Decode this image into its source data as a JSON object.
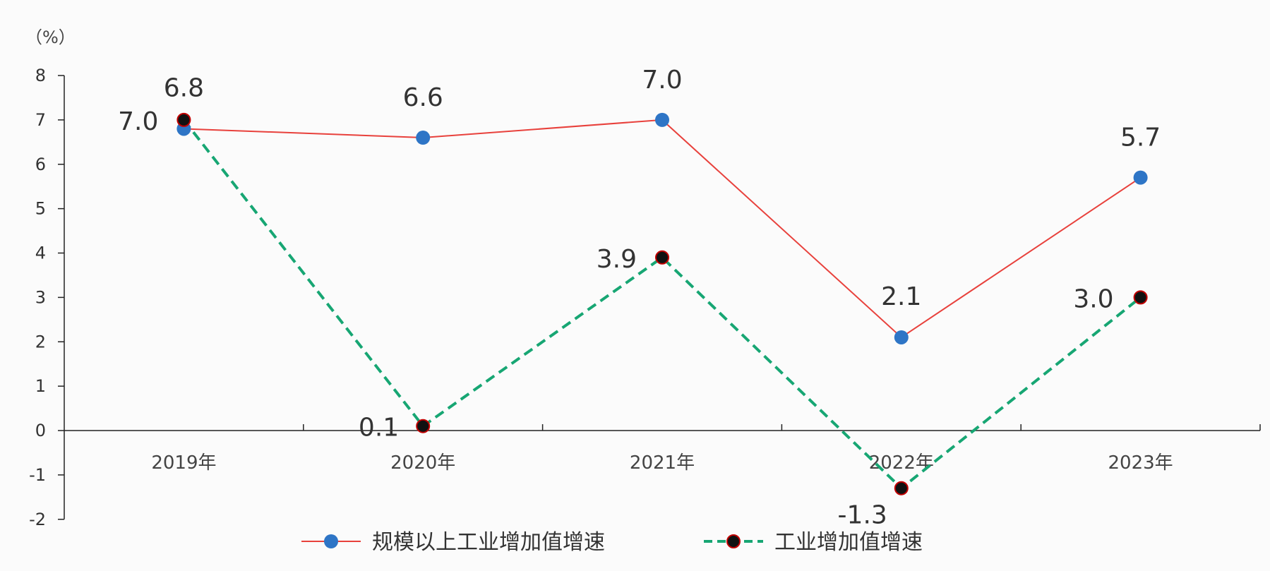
{
  "chart_data": {
    "type": "line",
    "unit": "（%）",
    "categories": [
      "2019年",
      "2020年",
      "2021年",
      "2022年",
      "2023年"
    ],
    "ylim": [
      -2,
      8
    ],
    "yticks": [
      -2,
      -1,
      0,
      1,
      2,
      3,
      4,
      5,
      6,
      7,
      8
    ],
    "grid": false,
    "legend_position": "bottom",
    "series": [
      {
        "name": "规模以上工业增加值增速",
        "values": [
          6.8,
          6.6,
          7.0,
          2.1,
          5.7
        ],
        "labels": [
          "6.8",
          "6.6",
          "7.0",
          "2.1",
          "5.7"
        ],
        "color": "#e8413c",
        "marker_color": "#2e75c6",
        "line_style": "solid"
      },
      {
        "name": "工业增加值增速",
        "values": [
          7.0,
          0.1,
          3.9,
          -1.3,
          3.0
        ],
        "labels": [
          "7.0",
          "0.1",
          "3.9",
          "-1.3",
          "3.0"
        ],
        "color": "#17a673",
        "marker_color": "#111111",
        "marker_edge": "#c00000",
        "line_style": "dashed"
      }
    ]
  }
}
